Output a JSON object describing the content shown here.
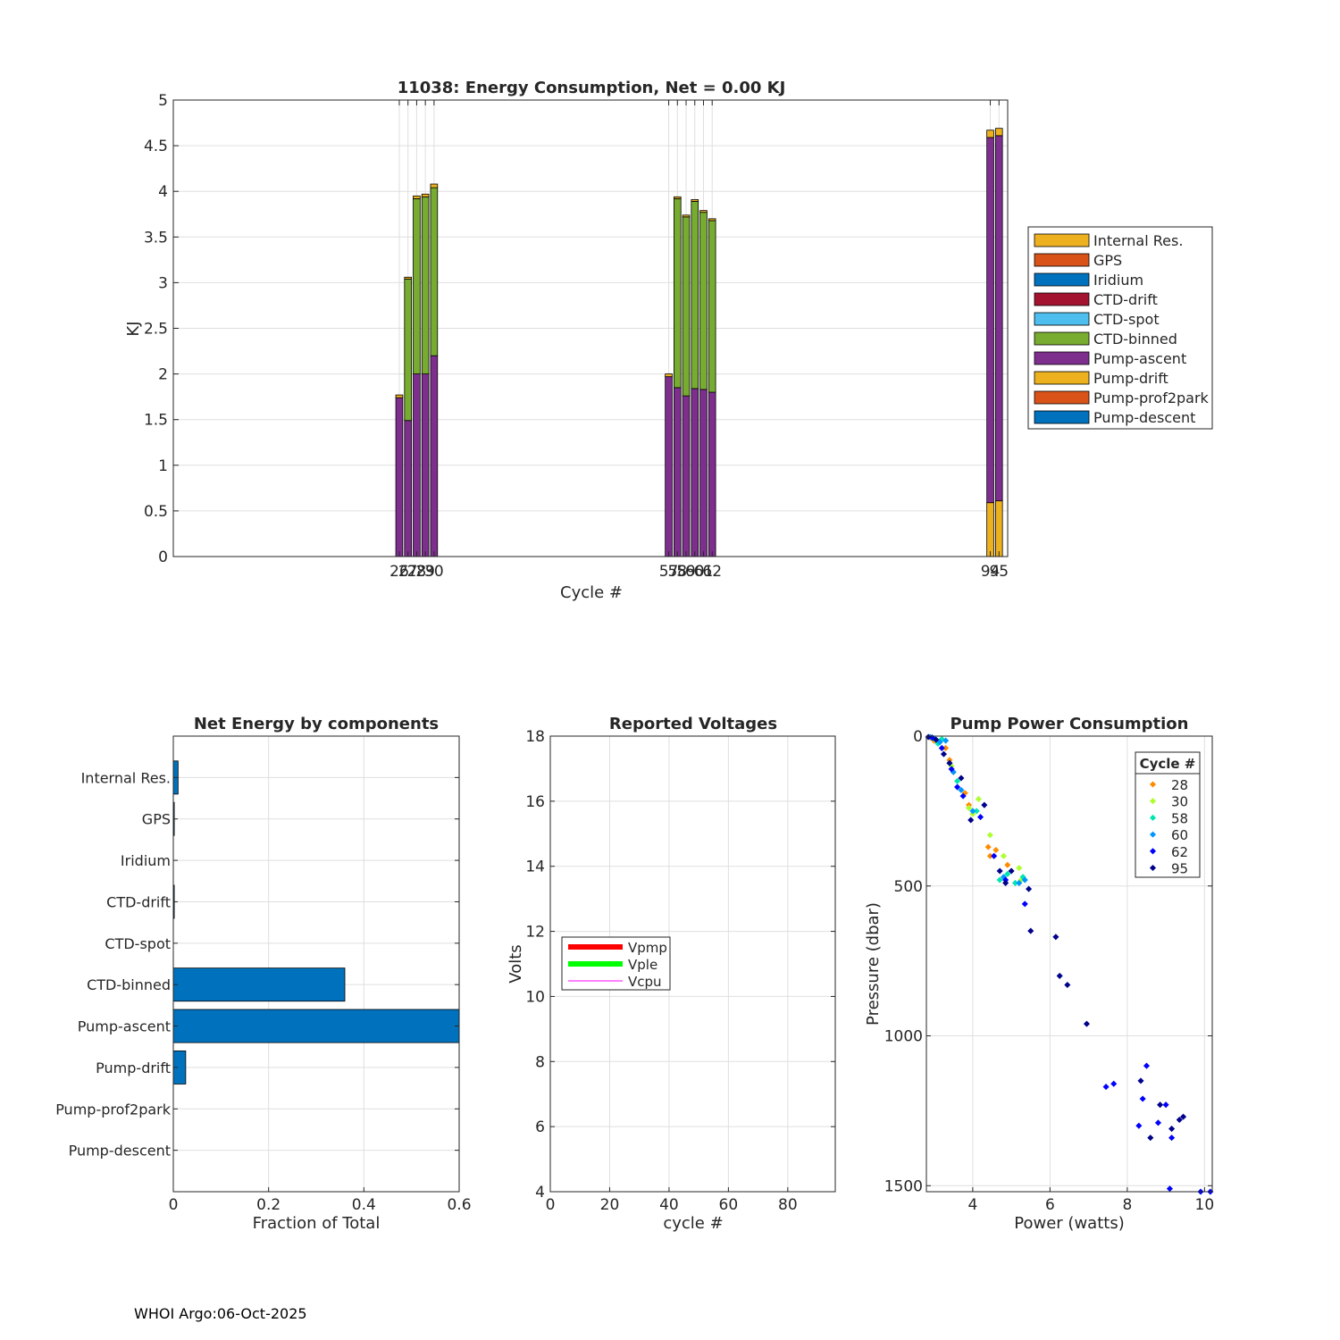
{
  "footer": "WHOI Argo:06-Oct-2025",
  "chart_data": [
    {
      "type": "bar",
      "stacked": true,
      "title": "11038: Energy Consumption,  Net =   0.00 KJ",
      "xlabel": "Cycle #",
      "ylabel": "KJ",
      "ylim": [
        0,
        5
      ],
      "yticks": [
        0,
        0.5,
        1,
        1.5,
        2,
        2.5,
        3,
        3.5,
        4,
        4.5,
        5
      ],
      "yticklabels": [
        "0",
        "0.5",
        "1",
        "1.5",
        "2",
        "2.5",
        "3",
        "3.5",
        "4",
        "4.5",
        "5"
      ],
      "xlim": [
        0,
        96
      ],
      "grid": true,
      "legend_position": "outside-right",
      "component_colors": {
        "Internal Res.": "#EDB120",
        "GPS": "#D95319",
        "Iridium": "#0072BD",
        "CTD-drift": "#A2142F",
        "CTD-spot": "#4DBEEE",
        "CTD-binned": "#77AC30",
        "Pump-ascent": "#7E2F8E",
        "Pump-drift": "#EDB120",
        "Pump-prof2park": "#D95319",
        "Pump-descent": "#0072BD"
      },
      "legend": [
        "Internal Res.",
        "GPS",
        "Iridium",
        "CTD-drift",
        "CTD-spot",
        "CTD-binned",
        "Pump-ascent",
        "Pump-drift",
        "Pump-prof2park",
        "Pump-descent"
      ],
      "cycles": [
        {
          "cycle": 26,
          "pump_drift": 0,
          "pump_ascent": 1.74,
          "ctd_binned": 0,
          "internal_res": 0.03
        },
        {
          "cycle": 27,
          "pump_drift": 0,
          "pump_ascent": 1.49,
          "ctd_binned": 1.55,
          "internal_res": 0.02
        },
        {
          "cycle": 28,
          "pump_drift": 0,
          "pump_ascent": 2.0,
          "ctd_binned": 1.92,
          "internal_res": 0.03
        },
        {
          "cycle": 29,
          "pump_drift": 0,
          "pump_ascent": 2.0,
          "ctd_binned": 1.94,
          "internal_res": 0.03
        },
        {
          "cycle": 30,
          "pump_drift": 0,
          "pump_ascent": 2.2,
          "ctd_binned": 1.84,
          "internal_res": 0.04
        },
        {
          "cycle": 57,
          "pump_drift": 0,
          "pump_ascent": 1.97,
          "ctd_binned": 0,
          "internal_res": 0.03
        },
        {
          "cycle": 58,
          "pump_drift": 0,
          "pump_ascent": 1.85,
          "ctd_binned": 2.07,
          "internal_res": 0.02
        },
        {
          "cycle": 59,
          "pump_drift": 0,
          "pump_ascent": 1.76,
          "ctd_binned": 1.96,
          "internal_res": 0.02
        },
        {
          "cycle": 60,
          "pump_drift": 0,
          "pump_ascent": 1.84,
          "ctd_binned": 2.05,
          "internal_res": 0.02
        },
        {
          "cycle": 61,
          "pump_drift": 0,
          "pump_ascent": 1.83,
          "ctd_binned": 1.94,
          "internal_res": 0.02
        },
        {
          "cycle": 62,
          "pump_drift": 0,
          "pump_ascent": 1.8,
          "ctd_binned": 1.88,
          "internal_res": 0.02
        },
        {
          "cycle": 94,
          "pump_drift": 0.59,
          "pump_ascent": 4.0,
          "ctd_binned": 0,
          "internal_res": 0.08
        },
        {
          "cycle": 95,
          "pump_drift": 0.61,
          "pump_ascent": 4.0,
          "ctd_binned": 0,
          "internal_res": 0.08
        }
      ],
      "xticklabels": [
        {
          "x": 26,
          "label": "26"
        },
        {
          "x": 27,
          "label": "27"
        },
        {
          "x": 28,
          "label": "28"
        },
        {
          "x": 29,
          "label": "29"
        },
        {
          "x": 30,
          "label": "30"
        },
        {
          "x": 57,
          "label": "57"
        },
        {
          "x": 58,
          "label": "58"
        },
        {
          "x": 59,
          "label": "59"
        },
        {
          "x": 60,
          "label": "60"
        },
        {
          "x": 61,
          "label": "61"
        },
        {
          "x": 62,
          "label": "62"
        },
        {
          "x": 94,
          "label": "94"
        },
        {
          "x": 95,
          "label": "95"
        }
      ]
    },
    {
      "type": "bar",
      "orientation": "horizontal",
      "title": "Net Energy by components",
      "xlabel": "Fraction of Total",
      "ylabel": "",
      "xlim": [
        0,
        0.6
      ],
      "xticks": [
        0,
        0.2,
        0.4,
        0.6
      ],
      "xticklabels": [
        "0",
        "0.2",
        "0.4",
        "0.6"
      ],
      "grid": true,
      "color": "#0072BD",
      "categories": [
        "Internal Res.",
        "GPS",
        "Iridium",
        "CTD-drift",
        "CTD-spot",
        "CTD-binned",
        "Pump-ascent",
        "Pump-drift",
        "Pump-prof2park",
        "Pump-descent"
      ],
      "values": [
        0.01,
        0.002,
        0,
        0.002,
        0,
        0.36,
        0.6,
        0.026,
        0,
        0
      ]
    },
    {
      "type": "line",
      "title": "Reported Voltages",
      "xlabel": "cycle #",
      "ylabel": "Volts",
      "xlim": [
        0,
        96
      ],
      "ylim": [
        4,
        18
      ],
      "xticks": [
        0,
        20,
        40,
        60,
        80
      ],
      "xticklabels": [
        "0",
        "20",
        "40",
        "60",
        "80"
      ],
      "yticks": [
        4,
        6,
        8,
        10,
        12,
        14,
        16,
        18
      ],
      "yticklabels": [
        "4",
        "6",
        "8",
        "10",
        "12",
        "14",
        "16",
        "18"
      ],
      "grid": true,
      "legend_position": "middle-left",
      "series": [
        {
          "name": "Vpmp",
          "color": "#FF0000",
          "values": []
        },
        {
          "name": "Vple",
          "color": "#00FF00",
          "values": []
        },
        {
          "name": "Vcpu",
          "color": "#FF00FF",
          "values": []
        }
      ]
    },
    {
      "type": "scatter",
      "title": "Pump Power Consumption",
      "xlabel": "Power (watts)",
      "ylabel": "Pressure (dbar)",
      "xlim": [
        2.8,
        10.2
      ],
      "ylim": [
        0,
        1520
      ],
      "y_reversed": true,
      "xticks": [
        4,
        6,
        8,
        10
      ],
      "xticklabels": [
        "4",
        "6",
        "8",
        "10"
      ],
      "yticks": [
        0,
        500,
        1000,
        1500
      ],
      "yticklabels": [
        "0",
        "500",
        "1000",
        "1500"
      ],
      "grid": true,
      "legend_title": "Cycle #",
      "legend_position": "top-right",
      "series": [
        {
          "name": "28",
          "color": "#FF8C00",
          "x": [
            2.9,
            3.0,
            3.3,
            3.4,
            3.5,
            3.8,
            3.9,
            4.4,
            4.45,
            4.6,
            4.9
          ],
          "y": [
            5,
            15,
            40,
            80,
            120,
            190,
            230,
            370,
            400,
            380,
            430
          ]
        },
        {
          "name": "30",
          "color": "#ADFF2F",
          "x": [
            2.95,
            3.1,
            3.2,
            3.45,
            3.9,
            4.0,
            4.15,
            4.45,
            4.8,
            5.2,
            5.25
          ],
          "y": [
            5,
            20,
            10,
            100,
            240,
            260,
            210,
            330,
            400,
            440,
            480
          ]
        },
        {
          "name": "58",
          "color": "#00E5B0",
          "x": [
            3.0,
            3.1,
            3.2,
            3.4,
            3.6,
            4.1,
            4.7,
            4.9,
            5.1,
            5.3
          ],
          "y": [
            8,
            25,
            10,
            90,
            150,
            250,
            480,
            460,
            490,
            470
          ]
        },
        {
          "name": "60",
          "color": "#0096FF",
          "x": [
            2.9,
            3.15,
            3.3,
            3.5,
            3.7,
            4.0,
            4.8,
            5.2,
            5.35
          ],
          "y": [
            3,
            20,
            15,
            120,
            180,
            250,
            470,
            490,
            480
          ]
        },
        {
          "name": "62",
          "color": "#0000FF",
          "x": [
            2.95,
            3.2,
            3.45,
            3.6,
            3.75,
            4.2,
            4.55,
            4.85,
            5.35,
            7.45,
            7.65,
            8.3,
            8.4,
            8.5,
            8.8,
            9.0,
            9.1,
            9.15,
            9.9,
            10.15
          ],
          "y": [
            5,
            40,
            110,
            170,
            200,
            270,
            400,
            480,
            560,
            1170,
            1160,
            1300,
            1210,
            1100,
            1290,
            1230,
            1510,
            1340,
            1520,
            1520
          ]
        },
        {
          "name": "95",
          "color": "#00008B",
          "x": [
            2.85,
            3.05,
            3.25,
            3.4,
            3.7,
            3.95,
            4.3,
            4.7,
            4.85,
            5.0,
            5.45,
            5.5,
            6.15,
            6.25,
            6.45,
            6.95,
            8.35,
            8.6,
            8.85,
            9.15,
            9.35,
            9.45
          ],
          "y": [
            3,
            12,
            60,
            90,
            140,
            280,
            230,
            450,
            490,
            450,
            510,
            650,
            670,
            800,
            830,
            960,
            1150,
            1340,
            1230,
            1310,
            1280,
            1270
          ]
        }
      ]
    }
  ]
}
